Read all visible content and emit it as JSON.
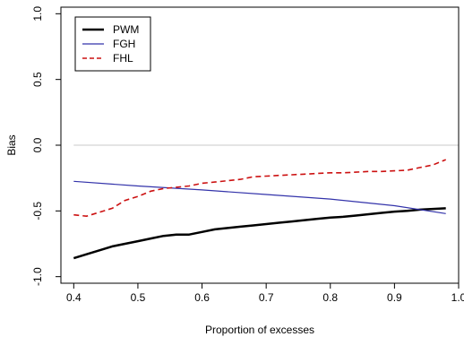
{
  "chart_data": {
    "type": "line",
    "xlabel": "Proportion of excesses",
    "ylabel": "Bias",
    "xlim": [
      0.38,
      1.0
    ],
    "ylim": [
      -1.05,
      1.05
    ],
    "x_ticks": [
      0.4,
      0.5,
      0.6,
      0.7,
      0.8,
      0.9,
      1.0
    ],
    "x_tick_labels": [
      "0.4",
      "0.5",
      "0.6",
      "0.7",
      "0.8",
      "0.9",
      "1.0"
    ],
    "y_ticks": [
      -1.0,
      -0.5,
      0.0,
      0.5,
      1.0
    ],
    "y_tick_labels": [
      "-1.0",
      "-0.5",
      "0.0",
      "0.5",
      "1.0"
    ],
    "reference_line": {
      "y": 0.0,
      "color": "#c8c8c8"
    },
    "legend_position": "top-left",
    "series": [
      {
        "name": "PWM",
        "color": "#000000",
        "style": "solid",
        "x": [
          0.4,
          0.42,
          0.44,
          0.46,
          0.48,
          0.5,
          0.52,
          0.54,
          0.56,
          0.58,
          0.6,
          0.62,
          0.64,
          0.66,
          0.68,
          0.7,
          0.72,
          0.74,
          0.76,
          0.78,
          0.8,
          0.82,
          0.84,
          0.86,
          0.88,
          0.9,
          0.92,
          0.94,
          0.96,
          0.98
        ],
        "y": [
          -0.86,
          -0.83,
          -0.8,
          -0.77,
          -0.75,
          -0.73,
          -0.71,
          -0.69,
          -0.68,
          -0.68,
          -0.66,
          -0.64,
          -0.63,
          -0.62,
          -0.61,
          -0.6,
          -0.59,
          -0.58,
          -0.57,
          -0.56,
          -0.55,
          -0.545,
          -0.535,
          -0.525,
          -0.515,
          -0.505,
          -0.5,
          -0.49,
          -0.485,
          -0.48
        ]
      },
      {
        "name": "FGH",
        "color": "#3333aa",
        "style": "solid",
        "x": [
          0.4,
          0.5,
          0.6,
          0.7,
          0.8,
          0.9,
          0.98
        ],
        "y": [
          -0.275,
          -0.31,
          -0.34,
          -0.375,
          -0.41,
          -0.46,
          -0.52
        ]
      },
      {
        "name": "FHL",
        "color": "#cc1111",
        "style": "dashed",
        "x": [
          0.4,
          0.42,
          0.44,
          0.46,
          0.48,
          0.5,
          0.52,
          0.54,
          0.56,
          0.58,
          0.6,
          0.62,
          0.64,
          0.66,
          0.68,
          0.7,
          0.72,
          0.74,
          0.76,
          0.78,
          0.8,
          0.82,
          0.84,
          0.86,
          0.88,
          0.9,
          0.92,
          0.94,
          0.96,
          0.98
        ],
        "y": [
          -0.53,
          -0.54,
          -0.51,
          -0.48,
          -0.42,
          -0.39,
          -0.35,
          -0.33,
          -0.32,
          -0.31,
          -0.29,
          -0.28,
          -0.27,
          -0.26,
          -0.24,
          -0.235,
          -0.23,
          -0.225,
          -0.22,
          -0.215,
          -0.21,
          -0.21,
          -0.205,
          -0.2,
          -0.2,
          -0.195,
          -0.19,
          -0.17,
          -0.15,
          -0.11
        ]
      }
    ]
  }
}
